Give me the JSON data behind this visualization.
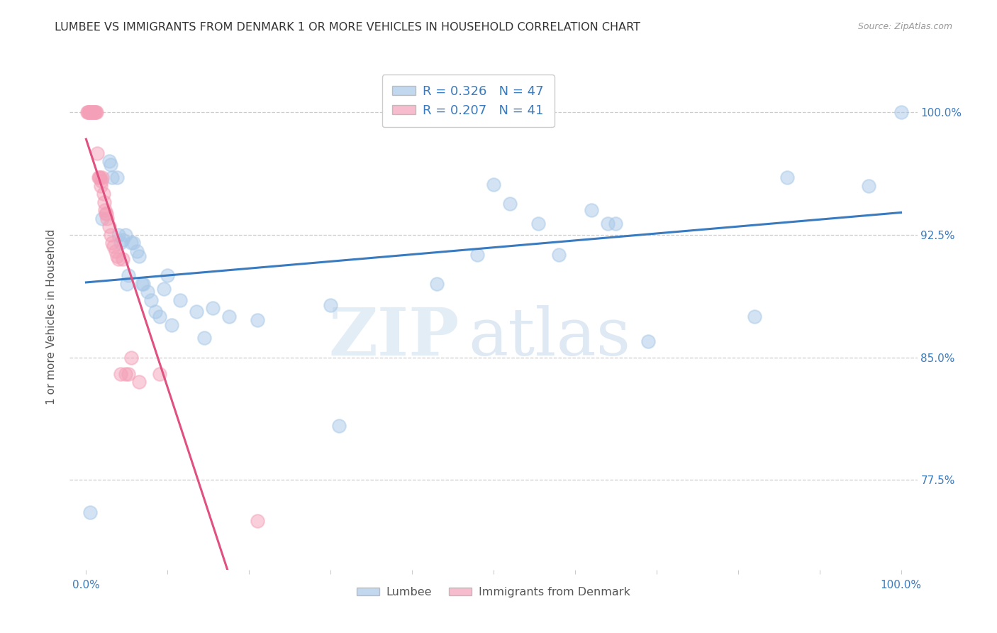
{
  "title": "LUMBEE VS IMMIGRANTS FROM DENMARK 1 OR MORE VEHICLES IN HOUSEHOLD CORRELATION CHART",
  "source": "Source: ZipAtlas.com",
  "ylabel": "1 or more Vehicles in Household",
  "yticks": [
    0.775,
    0.85,
    0.925,
    1.0
  ],
  "ytick_labels": [
    "77.5%",
    "85.0%",
    "92.5%",
    "100.0%"
  ],
  "lumbee_R": 0.326,
  "lumbee_N": 47,
  "denmark_R": 0.207,
  "denmark_N": 41,
  "lumbee_color": "#a8c8e8",
  "denmark_color": "#f4a0b8",
  "lumbee_line_color": "#3a7bbf",
  "denmark_line_color": "#e05080",
  "background_color": "#ffffff",
  "watermark_zip": "ZIP",
  "watermark_atlas": "atlas",
  "lumbee_x": [
    0.005,
    0.02,
    0.028,
    0.03,
    0.032,
    0.038,
    0.04,
    0.042,
    0.045,
    0.048,
    0.05,
    0.052,
    0.055,
    0.058,
    0.062,
    0.065,
    0.068,
    0.07,
    0.075,
    0.08,
    0.085,
    0.09,
    0.095,
    0.1,
    0.105,
    0.115,
    0.135,
    0.145,
    0.155,
    0.175,
    0.21,
    0.3,
    0.31,
    0.43,
    0.48,
    0.5,
    0.52,
    0.555,
    0.58,
    0.62,
    0.64,
    0.65,
    0.69,
    0.82,
    0.86,
    0.96,
    1.0
  ],
  "lumbee_y": [
    0.755,
    0.935,
    0.97,
    0.968,
    0.96,
    0.96,
    0.925,
    0.92,
    0.922,
    0.925,
    0.895,
    0.9,
    0.92,
    0.92,
    0.915,
    0.912,
    0.895,
    0.895,
    0.89,
    0.885,
    0.878,
    0.875,
    0.892,
    0.9,
    0.87,
    0.885,
    0.878,
    0.862,
    0.88,
    0.875,
    0.873,
    0.882,
    0.808,
    0.895,
    0.913,
    0.956,
    0.944,
    0.932,
    0.913,
    0.94,
    0.932,
    0.932,
    0.86,
    0.875,
    0.96,
    0.955,
    1.0
  ],
  "denmark_x": [
    0.001,
    0.002,
    0.003,
    0.004,
    0.005,
    0.006,
    0.007,
    0.008,
    0.009,
    0.01,
    0.011,
    0.012,
    0.013,
    0.014,
    0.015,
    0.016,
    0.017,
    0.018,
    0.019,
    0.02,
    0.021,
    0.022,
    0.023,
    0.024,
    0.025,
    0.026,
    0.028,
    0.03,
    0.032,
    0.034,
    0.036,
    0.038,
    0.04,
    0.042,
    0.045,
    0.048,
    0.052,
    0.055,
    0.065,
    0.09,
    0.21
  ],
  "denmark_y": [
    1.0,
    1.0,
    1.0,
    1.0,
    1.0,
    1.0,
    1.0,
    1.0,
    1.0,
    1.0,
    1.0,
    1.0,
    1.0,
    0.975,
    0.96,
    0.96,
    0.96,
    0.955,
    0.958,
    0.96,
    0.95,
    0.945,
    0.94,
    0.938,
    0.938,
    0.935,
    0.93,
    0.925,
    0.92,
    0.918,
    0.915,
    0.912,
    0.91,
    0.84,
    0.91,
    0.84,
    0.84,
    0.85,
    0.835,
    0.84,
    0.75
  ],
  "xlim": [
    -0.02,
    1.02
  ],
  "ylim": [
    0.72,
    1.03
  ]
}
